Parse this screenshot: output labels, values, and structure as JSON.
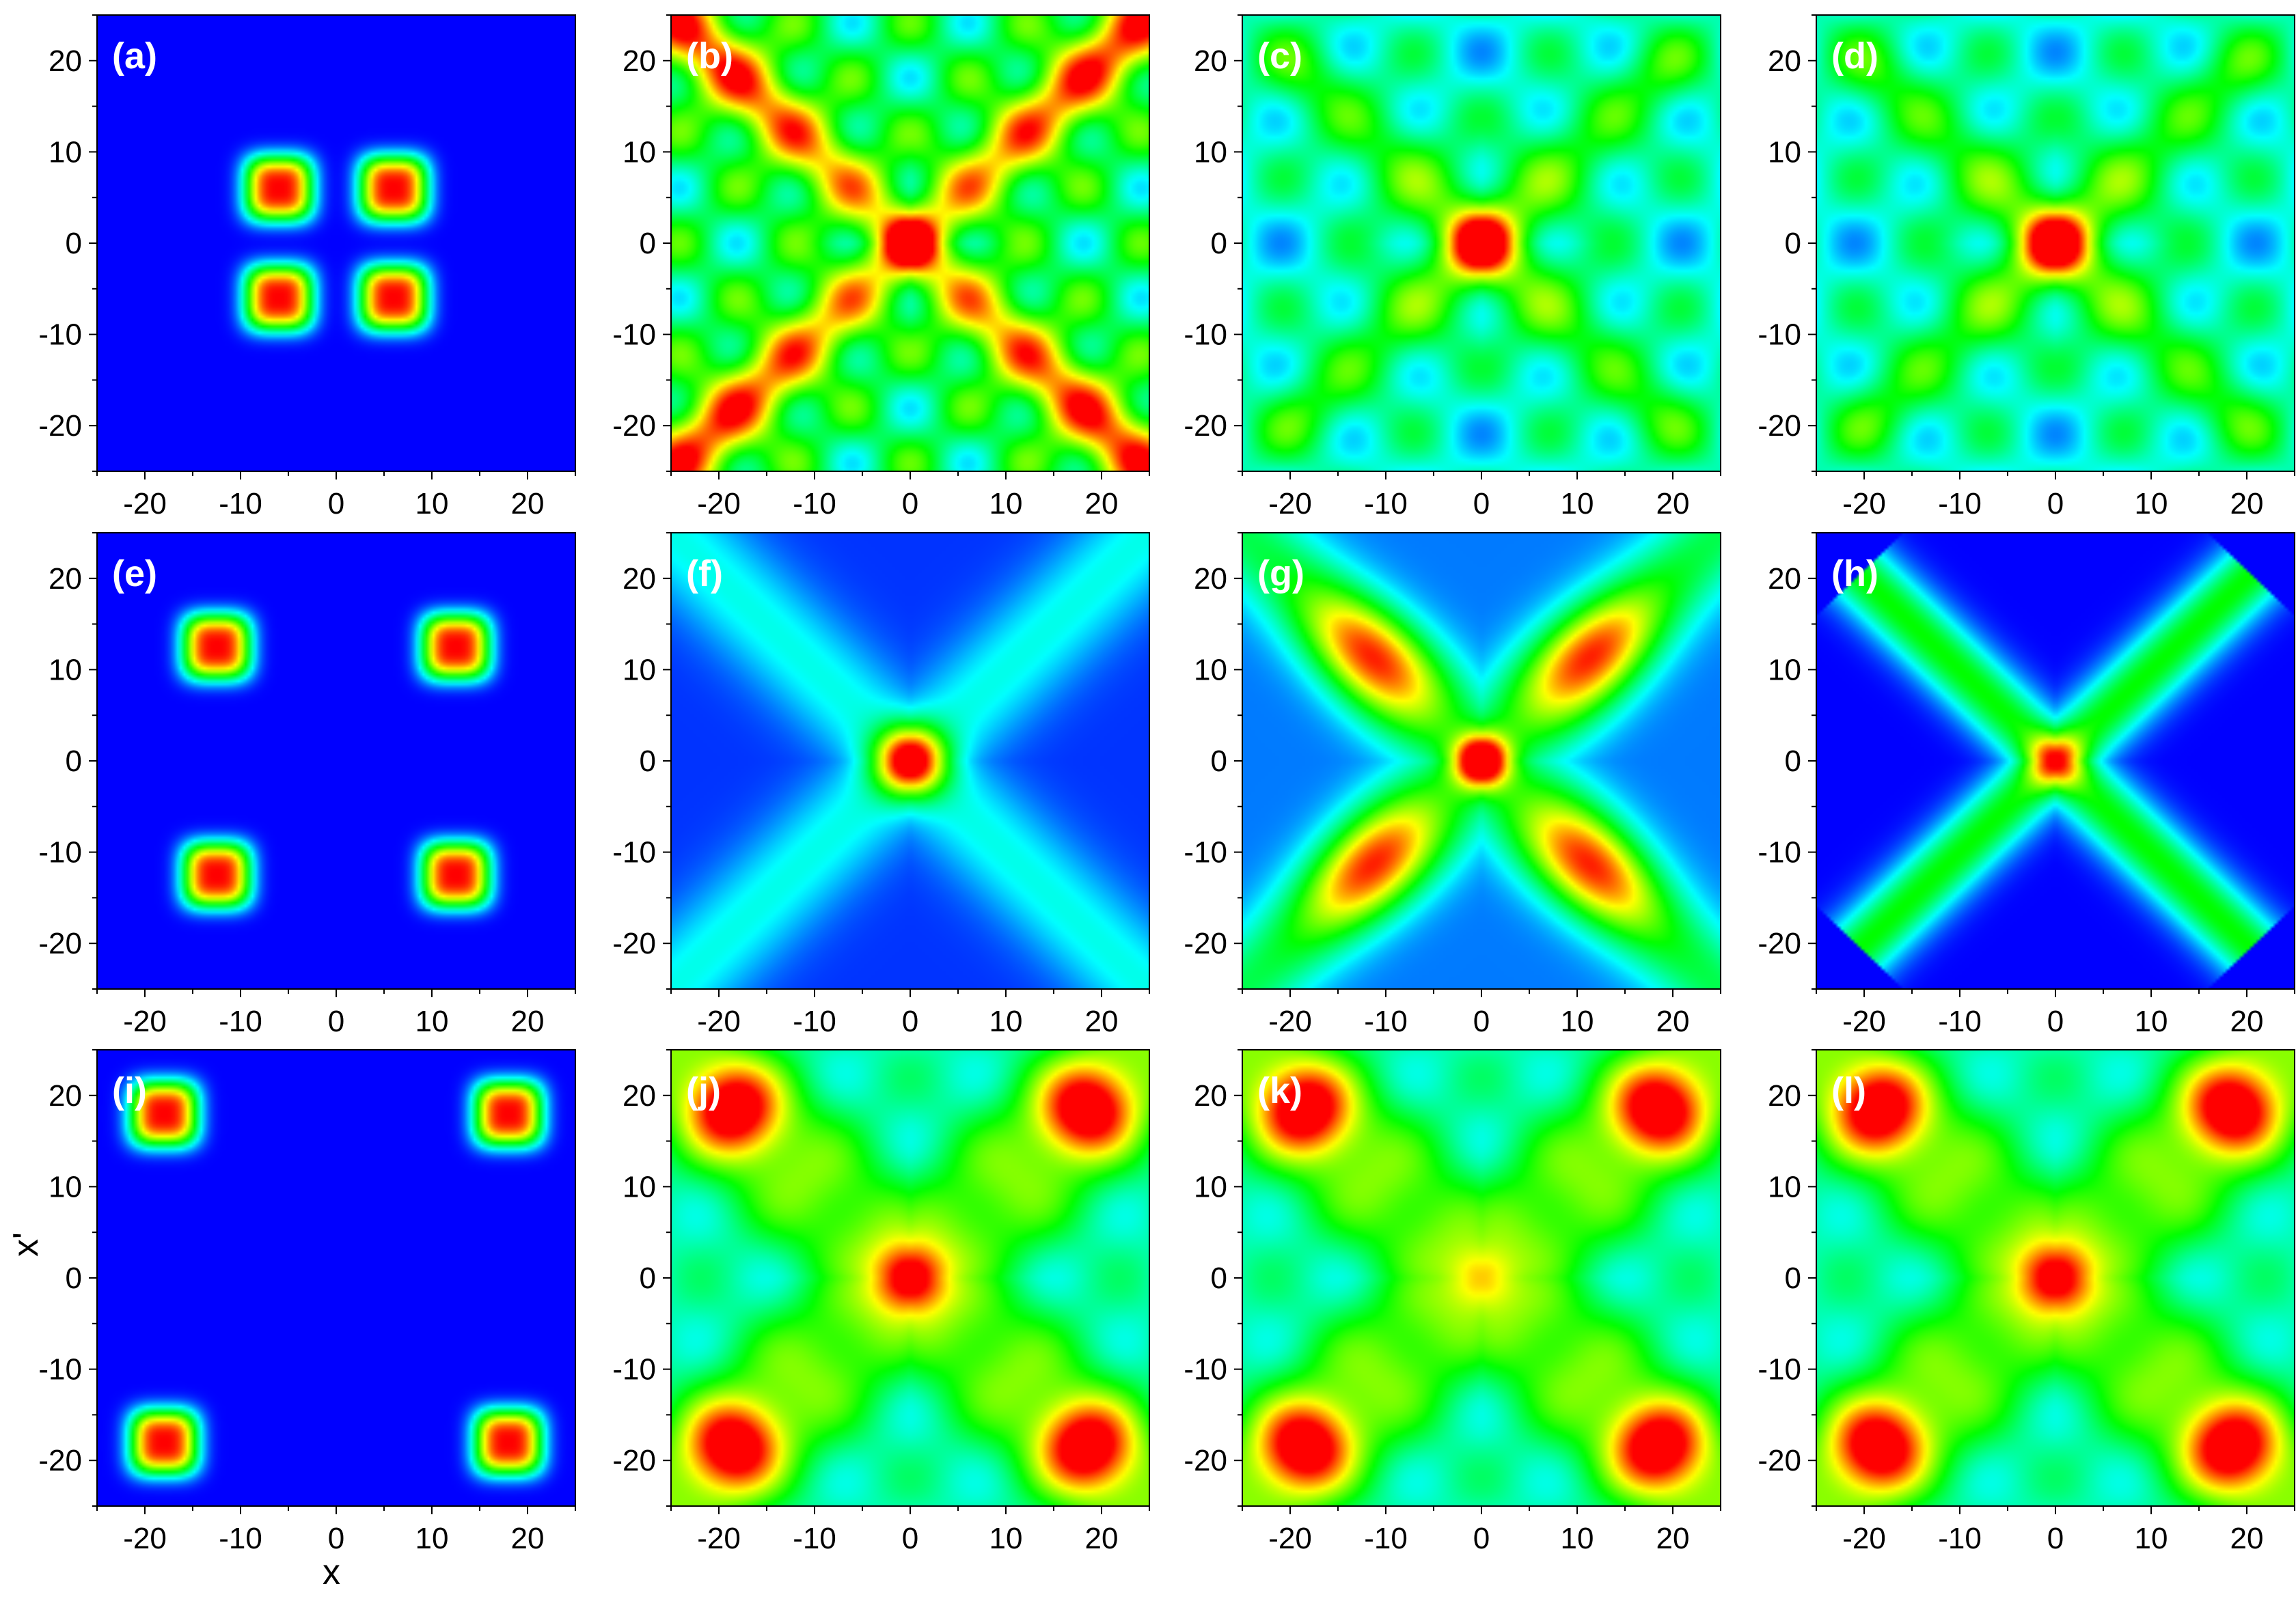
{
  "figure": {
    "xlabel": "x",
    "ylabel": "x'"
  },
  "chart_data": [
    {
      "id": "a",
      "type": "heatmap",
      "panel_label": "(a)",
      "xlim": [
        -25,
        25
      ],
      "ylim": [
        -25,
        25
      ],
      "xticks": [
        -20,
        -10,
        0,
        10,
        20
      ],
      "yticks": [
        -20,
        -10,
        0,
        10,
        20
      ],
      "tick_labels": [
        "-20",
        "-10",
        "0",
        "10",
        "20"
      ],
      "colormap": [
        "#0000ff",
        "#00ffff",
        "#00ff00",
        "#ffff00",
        "#ff0000"
      ],
      "pattern": "four-peaks",
      "peaks_at": 6
    },
    {
      "id": "b",
      "type": "heatmap",
      "panel_label": "(b)",
      "xlim": [
        -25,
        25
      ],
      "ylim": [
        -25,
        25
      ],
      "xticks": [
        -20,
        -10,
        0,
        10,
        20
      ],
      "yticks": [
        -20,
        -10,
        0,
        10,
        20
      ],
      "tick_labels": [
        "-20",
        "-10",
        "0",
        "10",
        "20"
      ],
      "colormap": [
        "#0000ff",
        "#00ffff",
        "#00ff00",
        "#ffff00",
        "#ff0000"
      ],
      "pattern": "interference-x",
      "center_peak": true
    },
    {
      "id": "c",
      "type": "heatmap",
      "panel_label": "(c)",
      "xlim": [
        -25,
        25
      ],
      "ylim": [
        -25,
        25
      ],
      "xticks": [
        -20,
        -10,
        0,
        10,
        20
      ],
      "yticks": [
        -20,
        -10,
        0,
        10,
        20
      ],
      "tick_labels": [
        "-20",
        "-10",
        "0",
        "10",
        "20"
      ],
      "colormap": [
        "#0000ff",
        "#00ffff",
        "#00ff00",
        "#ffff00",
        "#ff0000"
      ],
      "pattern": "diffuse-x",
      "center_peak": true
    },
    {
      "id": "d",
      "type": "heatmap",
      "panel_label": "(d)",
      "xlim": [
        -25,
        25
      ],
      "ylim": [
        -25,
        25
      ],
      "xticks": [
        -20,
        -10,
        0,
        10,
        20
      ],
      "yticks": [
        -20,
        -10,
        0,
        10,
        20
      ],
      "tick_labels": [
        "-20",
        "-10",
        "0",
        "10",
        "20"
      ],
      "colormap": [
        "#0000ff",
        "#00ffff",
        "#00ff00",
        "#ffff00",
        "#ff0000"
      ],
      "pattern": "diffuse-x",
      "center_peak": true
    },
    {
      "id": "e",
      "type": "heatmap",
      "panel_label": "(e)",
      "xlim": [
        -25,
        25
      ],
      "ylim": [
        -25,
        25
      ],
      "xticks": [
        -20,
        -10,
        0,
        10,
        20
      ],
      "yticks": [
        -20,
        -10,
        0,
        10,
        20
      ],
      "tick_labels": [
        "-20",
        "-10",
        "0",
        "10",
        "20"
      ],
      "colormap": [
        "#0000ff",
        "#00ffff",
        "#00ff00",
        "#ffff00",
        "#ff0000"
      ],
      "pattern": "four-peaks",
      "peaks_at": 12.5
    },
    {
      "id": "f",
      "type": "heatmap",
      "panel_label": "(f)",
      "xlim": [
        -25,
        25
      ],
      "ylim": [
        -25,
        25
      ],
      "xticks": [
        -20,
        -10,
        0,
        10,
        20
      ],
      "yticks": [
        -20,
        -10,
        0,
        10,
        20
      ],
      "tick_labels": [
        "-20",
        "-10",
        "0",
        "10",
        "20"
      ],
      "colormap": [
        "#0000ff",
        "#00ffff",
        "#00ff00",
        "#ffff00",
        "#ff0000"
      ],
      "pattern": "faint-x",
      "center_peak": true
    },
    {
      "id": "g",
      "type": "heatmap",
      "panel_label": "(g)",
      "xlim": [
        -25,
        25
      ],
      "ylim": [
        -25,
        25
      ],
      "xticks": [
        -20,
        -10,
        0,
        10,
        20
      ],
      "yticks": [
        -20,
        -10,
        0,
        10,
        20
      ],
      "tick_labels": [
        "-20",
        "-10",
        "0",
        "10",
        "20"
      ],
      "colormap": [
        "#0000ff",
        "#00ffff",
        "#00ff00",
        "#ffff00",
        "#ff0000"
      ],
      "pattern": "strong-x",
      "center_peak": true
    },
    {
      "id": "h",
      "type": "heatmap",
      "panel_label": "(h)",
      "xlim": [
        -25,
        25
      ],
      "ylim": [
        -25,
        25
      ],
      "xticks": [
        -20,
        -10,
        0,
        10,
        20
      ],
      "yticks": [
        -20,
        -10,
        0,
        10,
        20
      ],
      "tick_labels": [
        "-20",
        "-10",
        "0",
        "10",
        "20"
      ],
      "colormap": [
        "#0000ff",
        "#00ffff",
        "#00ff00",
        "#ffff00",
        "#ff0000"
      ],
      "pattern": "clean-x",
      "center_peak": true
    },
    {
      "id": "i",
      "type": "heatmap",
      "panel_label": "(i)",
      "xlim": [
        -25,
        25
      ],
      "ylim": [
        -25,
        25
      ],
      "xticks": [
        -20,
        -10,
        0,
        10,
        20
      ],
      "yticks": [
        -20,
        -10,
        0,
        10,
        20
      ],
      "tick_labels": [
        "-20",
        "-10",
        "0",
        "10",
        "20"
      ],
      "colormap": [
        "#0000ff",
        "#00ffff",
        "#00ff00",
        "#ffff00",
        "#ff0000"
      ],
      "pattern": "four-peaks",
      "peaks_at": 18
    },
    {
      "id": "j",
      "type": "heatmap",
      "panel_label": "(j)",
      "xlim": [
        -25,
        25
      ],
      "ylim": [
        -25,
        25
      ],
      "xticks": [
        -20,
        -10,
        0,
        10,
        20
      ],
      "yticks": [
        -20,
        -10,
        0,
        10,
        20
      ],
      "tick_labels": [
        "-20",
        "-10",
        "0",
        "10",
        "20"
      ],
      "colormap": [
        "#0000ff",
        "#00ffff",
        "#00ff00",
        "#ffff00",
        "#ff0000"
      ],
      "pattern": "corner-x",
      "center_peak": true
    },
    {
      "id": "k",
      "type": "heatmap",
      "panel_label": "(k)",
      "xlim": [
        -25,
        25
      ],
      "ylim": [
        -25,
        25
      ],
      "xticks": [
        -20,
        -10,
        0,
        10,
        20
      ],
      "yticks": [
        -20,
        -10,
        0,
        10,
        20
      ],
      "tick_labels": [
        "-20",
        "-10",
        "0",
        "10",
        "20"
      ],
      "colormap": [
        "#0000ff",
        "#00ffff",
        "#00ff00",
        "#ffff00",
        "#ff0000"
      ],
      "pattern": "corner-x",
      "center_peak": false
    },
    {
      "id": "l",
      "type": "heatmap",
      "panel_label": "(l)",
      "xlim": [
        -25,
        25
      ],
      "ylim": [
        -25,
        25
      ],
      "xticks": [
        -20,
        -10,
        0,
        10,
        20
      ],
      "yticks": [
        -20,
        -10,
        0,
        10,
        20
      ],
      "tick_labels": [
        "-20",
        "-10",
        "0",
        "10",
        "20"
      ],
      "colormap": [
        "#0000ff",
        "#00ffff",
        "#00ff00",
        "#ffff00",
        "#ff0000"
      ],
      "pattern": "corner-x",
      "center_peak": true
    }
  ]
}
